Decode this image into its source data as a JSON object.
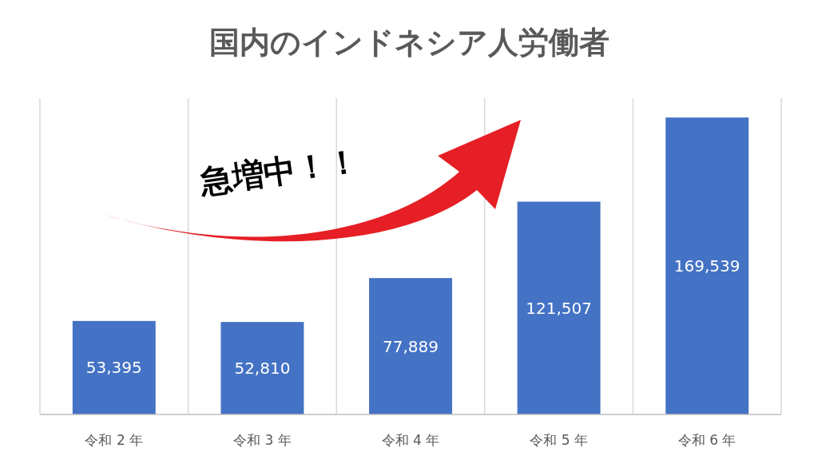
{
  "chart_data": {
    "type": "bar",
    "title": "国内のインドネシア人労働者",
    "categories": [
      "令和 2 年",
      "令和 3 年",
      "令和 4 年",
      "令和 5 年",
      "令和 6 年"
    ],
    "values": [
      53395,
      52810,
      77889,
      121507,
      169539
    ],
    "value_labels": [
      "53,395",
      "52,810",
      "77,889",
      "121,507",
      "169,539"
    ],
    "color": "#4472c4",
    "grid": "x",
    "annotations": [
      "急増中！！"
    ]
  }
}
